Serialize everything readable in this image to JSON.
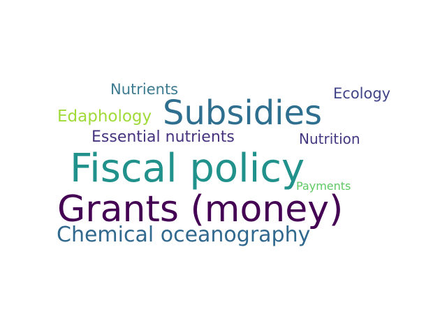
{
  "wordcloud": {
    "words": [
      {
        "text": "Nutrients",
        "color": "#3b7a8f"
      },
      {
        "text": "Ecology",
        "color": "#414487"
      },
      {
        "text": "Edaphology",
        "color": "#a0da39"
      },
      {
        "text": "Subsidies",
        "color": "#2e6e8e"
      },
      {
        "text": "Essential nutrients",
        "color": "#46327e"
      },
      {
        "text": "Nutrition",
        "color": "#453781"
      },
      {
        "text": "Fiscal policy",
        "color": "#21918c"
      },
      {
        "text": "Payments",
        "color": "#5ec962"
      },
      {
        "text": "Grants (money)",
        "color": "#440154"
      },
      {
        "text": "Chemical oceanography",
        "color": "#31688e"
      }
    ]
  }
}
